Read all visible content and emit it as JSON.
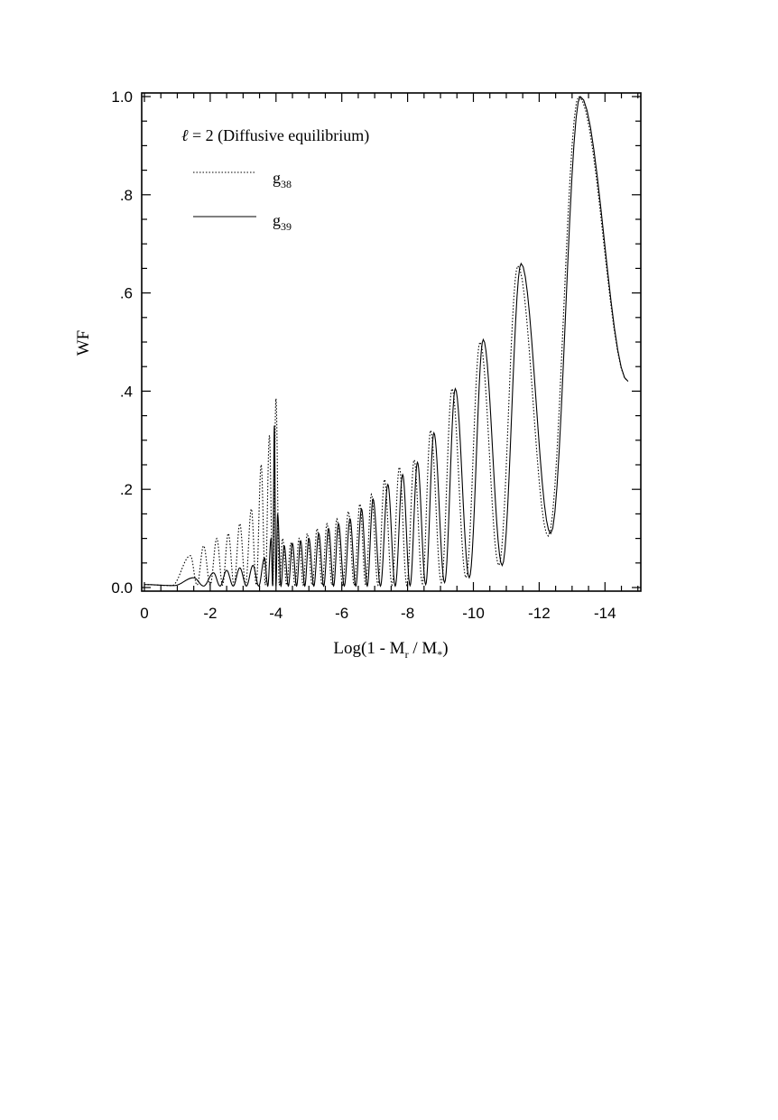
{
  "chart_data": {
    "type": "line",
    "title": "",
    "xlabel": {
      "prefix": "Log(1 - M",
      "sub1": "r",
      "mid": " / M",
      "sub2": "*",
      "suffix": ")"
    },
    "ylabel": "WF",
    "xlim": [
      0,
      -15
    ],
    "ylim": [
      0,
      1.0
    ],
    "x_ticks": [
      {
        "value": 0,
        "label": "0"
      },
      {
        "value": -2,
        "label": "-2"
      },
      {
        "value": -4,
        "label": "-4"
      },
      {
        "value": -6,
        "label": "-6"
      },
      {
        "value": -8,
        "label": "-8"
      },
      {
        "value": -10,
        "label": "-10"
      },
      {
        "value": -12,
        "label": "-12"
      },
      {
        "value": -14,
        "label": "-14"
      }
    ],
    "y_ticks": [
      {
        "value": 0.0,
        "label": "0.0"
      },
      {
        "value": 0.2,
        "label": ".2"
      },
      {
        "value": 0.4,
        "label": ".4"
      },
      {
        "value": 0.6,
        "label": ".6"
      },
      {
        "value": 0.8,
        "label": ".8"
      },
      {
        "value": 1.0,
        "label": "1.0"
      }
    ],
    "grid": false,
    "annotation": {
      "ell": "ℓ",
      "text": " = 2 (Diffusive equilibrium)"
    },
    "legend_position": "top-left",
    "series": [
      {
        "name": "g",
        "name_sub": "38",
        "style": "dotted",
        "color": "#000000",
        "peak_x": [
          -1.4,
          -1.8,
          -2.2,
          -2.55,
          -2.9,
          -3.25,
          -3.55,
          -3.8,
          -4.0,
          -4.2,
          -4.45,
          -4.7,
          -4.95,
          -5.25,
          -5.55,
          -5.85,
          -6.2,
          -6.55,
          -6.9,
          -7.3,
          -7.75,
          -8.2,
          -8.7,
          -9.35,
          -10.2,
          -11.35,
          -13.2
        ],
        "peak_y": [
          0.065,
          0.085,
          0.1,
          0.11,
          0.13,
          0.16,
          0.25,
          0.31,
          0.385,
          0.1,
          0.09,
          0.1,
          0.11,
          0.12,
          0.13,
          0.14,
          0.155,
          0.17,
          0.19,
          0.22,
          0.245,
          0.26,
          0.32,
          0.405,
          0.5,
          0.655,
          1.0
        ],
        "trough_y": [
          0.005,
          0.005,
          0.005,
          0.005,
          0.005,
          0.005,
          0.005,
          0.005,
          0.005,
          0.005,
          0.005,
          0.005,
          0.005,
          0.005,
          0.005,
          0.005,
          0.005,
          0.005,
          0.005,
          0.005,
          0.005,
          0.008,
          0.01,
          0.02,
          0.045,
          0.105
        ],
        "end_x": -14.7,
        "end_y": 0.42
      },
      {
        "name": "g",
        "name_sub": "39",
        "style": "solid",
        "color": "#000000",
        "peak_x": [
          -1.5,
          -2.1,
          -2.5,
          -2.9,
          -3.3,
          -3.65,
          -3.85,
          -3.95,
          -4.05,
          -4.25,
          -4.5,
          -4.75,
          -5.0,
          -5.3,
          -5.6,
          -5.9,
          -6.25,
          -6.6,
          -6.95,
          -7.4,
          -7.85,
          -8.3,
          -8.8,
          -9.45,
          -10.3,
          -11.45,
          -13.25
        ],
        "peak_y": [
          0.02,
          0.03,
          0.035,
          0.04,
          0.045,
          0.06,
          0.1,
          0.33,
          0.15,
          0.085,
          0.09,
          0.095,
          0.1,
          0.11,
          0.12,
          0.13,
          0.14,
          0.16,
          0.18,
          0.21,
          0.23,
          0.255,
          0.315,
          0.405,
          0.505,
          0.66,
          1.0
        ],
        "trough_y": [
          0.003,
          0.003,
          0.003,
          0.003,
          0.003,
          0.003,
          0.003,
          0.003,
          0.003,
          0.003,
          0.003,
          0.003,
          0.003,
          0.003,
          0.003,
          0.003,
          0.003,
          0.003,
          0.003,
          0.003,
          0.004,
          0.006,
          0.01,
          0.02,
          0.045,
          0.11
        ],
        "end_x": -14.7,
        "end_y": 0.42
      }
    ]
  }
}
